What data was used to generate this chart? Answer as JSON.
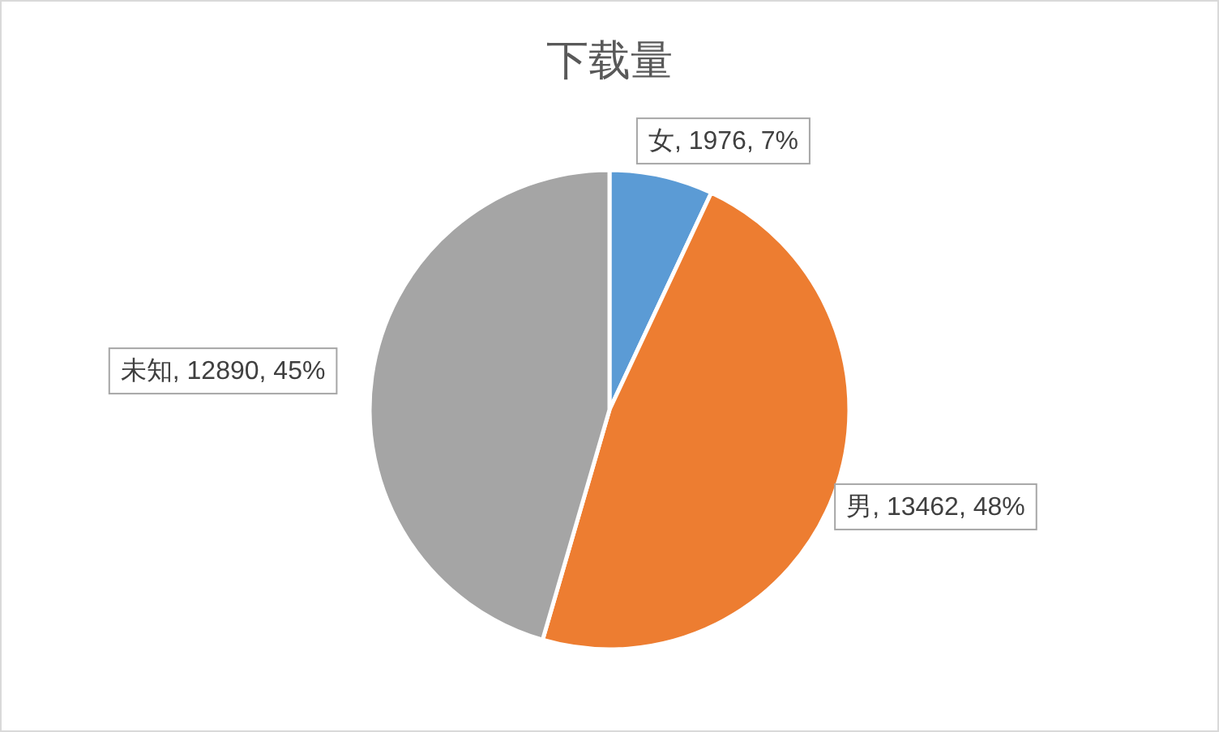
{
  "chart_data": {
    "type": "pie",
    "title": "下载量",
    "categories": [
      "女",
      "男",
      "未知"
    ],
    "values": [
      1976,
      13462,
      12890
    ],
    "colors": [
      "#5b9bd5",
      "#ed7d31",
      "#a5a5a5"
    ],
    "value_labels": [
      ", 1976, 7%",
      ", 13462, 48%",
      ", 12890, 45%"
    ]
  }
}
